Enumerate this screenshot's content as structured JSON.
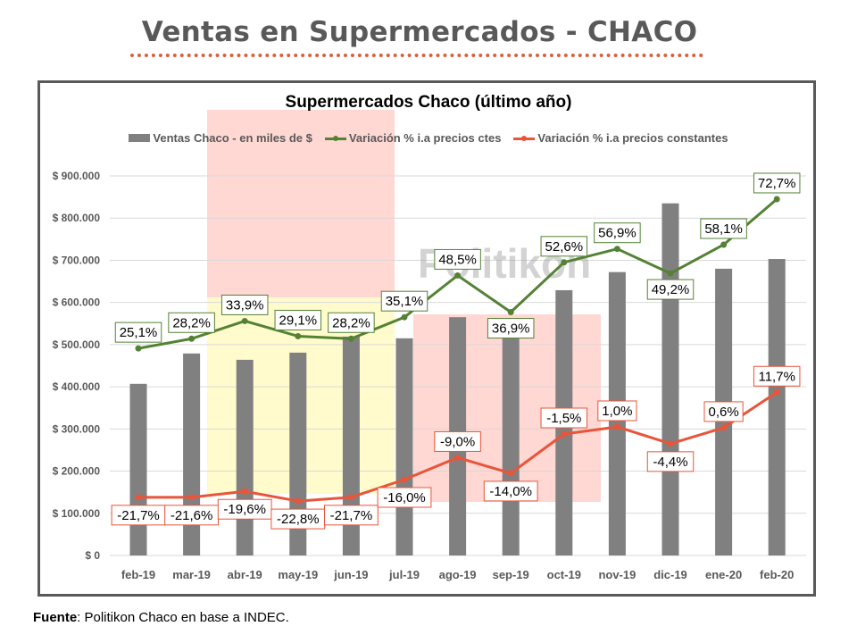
{
  "header": {
    "title": "Ventas en Supermercados - CHACO",
    "underline_color": "#d9603e"
  },
  "footer": {
    "source_label": "Fuente",
    "source_text": ": Politikon Chaco en base a INDEC."
  },
  "watermark": "Politikon",
  "highlights": [
    {
      "color": "#ffd7d3",
      "region": "abr-19 to jun-19, upper area"
    },
    {
      "color": "#fffbcc",
      "region": "abr-19 to jun-19, lower area"
    },
    {
      "color": "#ffd7d3",
      "region": "ago-19 to oct-19"
    }
  ],
  "colors": {
    "bars": "#808080",
    "green_line": "#548235",
    "red_line": "#e8553a",
    "grid": "#d9d9d9",
    "frame": "#595959"
  },
  "chart_data": {
    "type": "bar",
    "title": "Supermercados Chaco (último año)",
    "xlabel": "",
    "ylabel": "",
    "ylim": [
      0,
      900000
    ],
    "y_ticks": [
      "$ 0",
      "$ 100.000",
      "$ 200.000",
      "$ 300.000",
      "$ 400.000",
      "$ 500.000",
      "$ 600.000",
      "$ 700.000",
      "$ 800.000",
      "$ 900.000"
    ],
    "grid": true,
    "legend_position": "top",
    "categories": [
      "feb-19",
      "mar-19",
      "abr-19",
      "may-19",
      "jun-19",
      "jul-19",
      "ago-19",
      "sep-19",
      "oct-19",
      "nov-19",
      "dic-19",
      "ene-20",
      "feb-20"
    ],
    "series": [
      {
        "name": "Ventas Chaco - en miles de $",
        "type": "bar",
        "values": [
          407000,
          479000,
          464000,
          481000,
          519000,
          515000,
          565000,
          515000,
          629000,
          672000,
          835000,
          680000,
          703000
        ]
      },
      {
        "name": "Variación % i.a precios ctes",
        "type": "line",
        "labels": [
          "25,1%",
          "28,2%",
          "33,9%",
          "29,1%",
          "28,2%",
          "35,1%",
          "48,5%",
          "36,9%",
          "52,6%",
          "56,9%",
          "49,2%",
          "58,1%",
          "72,7%"
        ],
        "values": [
          25.1,
          28.2,
          33.9,
          29.1,
          28.2,
          35.1,
          48.5,
          36.9,
          52.6,
          56.9,
          49.2,
          58.1,
          72.7
        ],
        "plot_y": [
          491000,
          514000,
          556000,
          520000,
          514000,
          565000,
          664000,
          577000,
          695000,
          727000,
          669000,
          737000,
          845000
        ]
      },
      {
        "name": "Variación % i.a precios constantes",
        "type": "line",
        "labels": [
          "-21,7%",
          "-21,6%",
          "-19,6%",
          "-22,8%",
          "-21,7%",
          "-16,0%",
          "-9,0%",
          "-14,0%",
          "-1,5%",
          "1,0%",
          "-4,4%",
          "0,6%",
          "11,7%"
        ],
        "values": [
          -21.7,
          -21.6,
          -19.6,
          -22.8,
          -21.7,
          -16.0,
          -9.0,
          -14.0,
          -1.5,
          1.0,
          -4.4,
          0.6,
          11.7
        ],
        "plot_y": [
          138000,
          138000,
          152000,
          129000,
          138000,
          180000,
          232000,
          195000,
          288000,
          305000,
          265000,
          303000,
          387000
        ]
      }
    ]
  }
}
